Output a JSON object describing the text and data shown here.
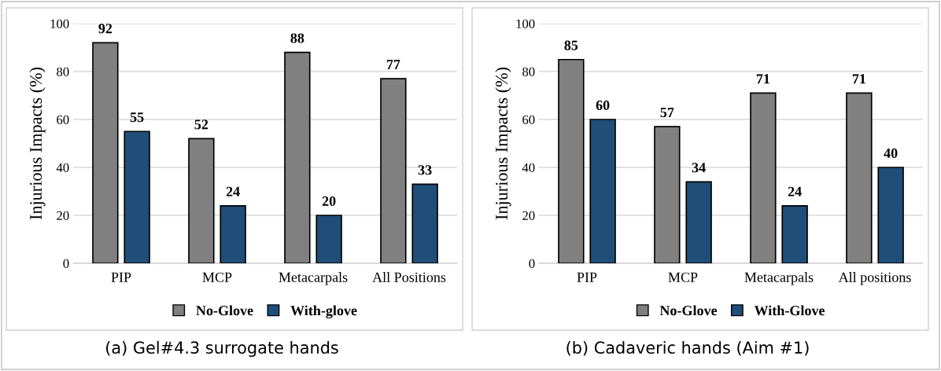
{
  "chart_data": [
    {
      "type": "bar",
      "ylabel": "Injurious Impacts (%)",
      "categories": [
        "PIP",
        "MCP",
        "Metacarpals",
        "All Positions"
      ],
      "series": [
        {
          "name": "No-Glove",
          "color": "#808080",
          "values": [
            92,
            52,
            88,
            77
          ]
        },
        {
          "name": "With-glove",
          "color": "#1f4e79",
          "values": [
            55,
            24,
            20,
            33
          ]
        }
      ],
      "ylim": [
        0,
        100
      ],
      "yticks": [
        0,
        20,
        40,
        60,
        80,
        100
      ],
      "grid": "y",
      "legend": "bottom",
      "data_labels": true,
      "annotations": [
        "(a) Gel#4.3 surrogate hands"
      ]
    },
    {
      "type": "bar",
      "ylabel": "Injurious Impacts (%)",
      "categories": [
        "PIP",
        "MCP",
        "Metacarpals",
        "All positions"
      ],
      "series": [
        {
          "name": "No-Glove",
          "color": "#808080",
          "values": [
            85,
            57,
            71,
            71
          ]
        },
        {
          "name": "With-Glove",
          "color": "#1f4e79",
          "values": [
            60,
            34,
            24,
            40
          ]
        }
      ],
      "ylim": [
        0,
        100
      ],
      "yticks": [
        0,
        20,
        40,
        60,
        80,
        100
      ],
      "grid": "y",
      "legend": "bottom",
      "data_labels": true,
      "annotations": [
        "(b) Cadaveric hands (Aim #1)"
      ]
    }
  ]
}
